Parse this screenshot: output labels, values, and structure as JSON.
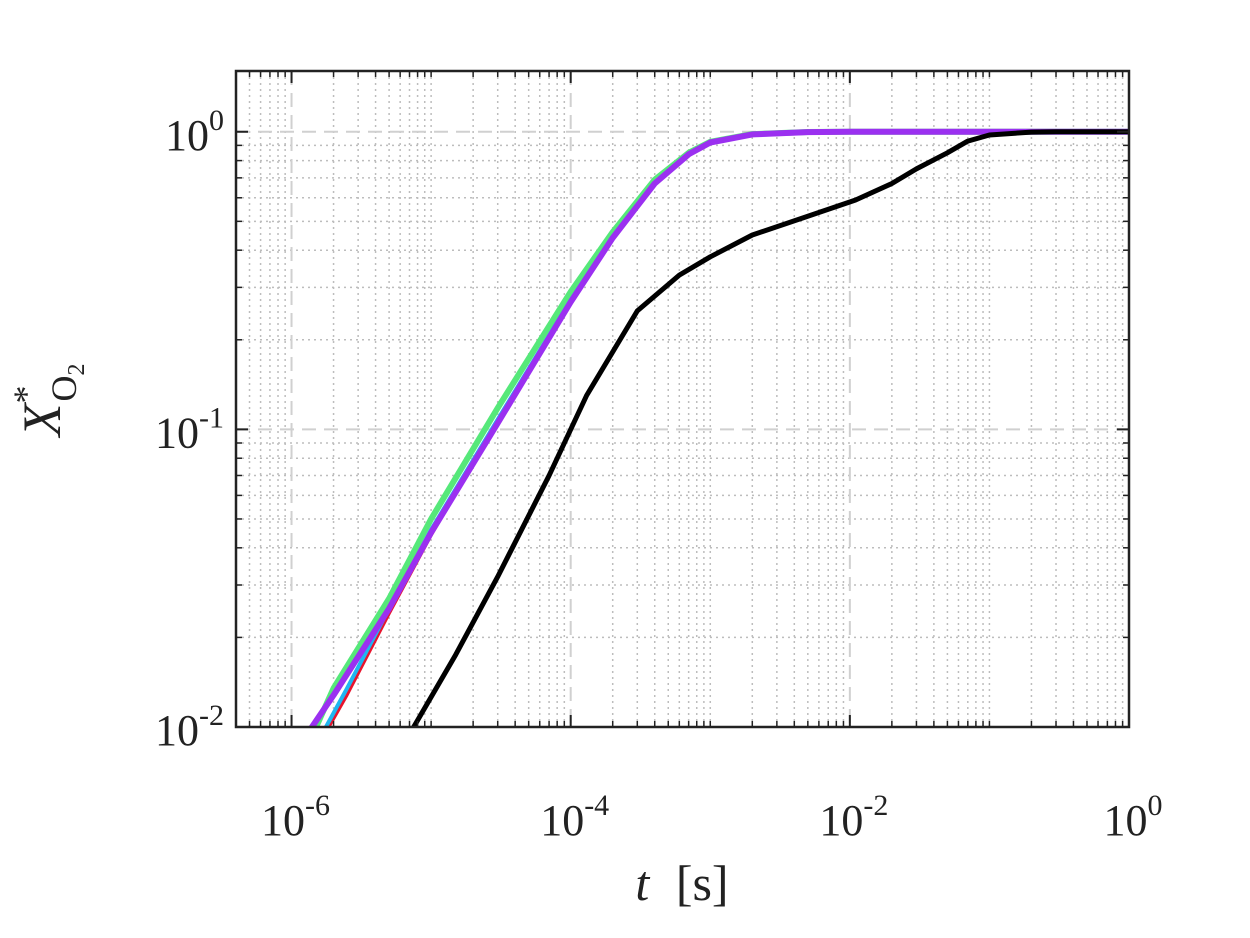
{
  "chart_data": {
    "type": "line",
    "title": "",
    "xlabel": {
      "var": "t",
      "unit": "[s]"
    },
    "ylabel": {
      "base": "X",
      "sup": "*",
      "sub": "O",
      "subsub": "2"
    },
    "xscale": "log",
    "yscale": "log",
    "xlim": [
      4e-07,
      1
    ],
    "ylim": [
      0.01,
      1.6
    ],
    "grid": true,
    "legend": "none",
    "x_ticks": [
      {
        "base": "10",
        "exp": "-6",
        "value": 1e-06
      },
      {
        "base": "10",
        "exp": "-4",
        "value": 0.0001
      },
      {
        "base": "10",
        "exp": "-2",
        "value": 0.01
      },
      {
        "base": "10",
        "exp": "0",
        "value": 1
      }
    ],
    "y_ticks": [
      {
        "base": "10",
        "exp": "-2",
        "value": 0.01
      },
      {
        "base": "10",
        "exp": "-1",
        "value": 0.1
      },
      {
        "base": "10",
        "exp": "0",
        "value": 1
      }
    ],
    "series": [
      {
        "color": "#e8142d",
        "width": 3,
        "points": [
          [
            1.7e-06,
            0.0093
          ],
          [
            2.5e-06,
            0.0128
          ],
          [
            5e-06,
            0.024
          ],
          [
            1e-05,
            0.044
          ],
          [
            3e-05,
            0.106
          ],
          [
            0.0001,
            0.27
          ],
          [
            0.0002,
            0.44
          ],
          [
            0.0004,
            0.67
          ],
          [
            0.0007,
            0.84
          ],
          [
            0.001,
            0.92
          ],
          [
            0.002,
            0.98
          ],
          [
            0.005,
            0.997
          ],
          [
            0.01,
            1.0
          ],
          [
            1,
            1.0
          ]
        ]
      },
      {
        "color": "#56e87a",
        "width": 6,
        "points": [
          [
            1.5e-06,
            0.01
          ],
          [
            2e-06,
            0.0135
          ],
          [
            5e-06,
            0.027
          ],
          [
            1e-05,
            0.05
          ],
          [
            3e-05,
            0.118
          ],
          [
            0.0001,
            0.29
          ],
          [
            0.0002,
            0.46
          ],
          [
            0.0004,
            0.69
          ],
          [
            0.0007,
            0.85
          ],
          [
            0.001,
            0.925
          ],
          [
            0.002,
            0.982
          ],
          [
            0.005,
            0.998
          ],
          [
            0.01,
            1.0
          ],
          [
            1,
            1.0
          ]
        ]
      },
      {
        "color": "#1fb6f0",
        "width": 4,
        "points": [
          [
            1.6e-06,
            0.0092
          ],
          [
            2.5e-06,
            0.0135
          ],
          [
            5e-06,
            0.025
          ],
          [
            1e-05,
            0.046
          ],
          [
            3e-05,
            0.108
          ],
          [
            0.0001,
            0.272
          ],
          [
            0.0002,
            0.445
          ],
          [
            0.0004,
            0.675
          ],
          [
            0.0007,
            0.84
          ],
          [
            0.001,
            0.92
          ],
          [
            0.002,
            0.98
          ],
          [
            0.005,
            0.997
          ],
          [
            0.01,
            1.0
          ],
          [
            1,
            1.0
          ]
        ]
      },
      {
        "color": "#9b30f0",
        "width": 6,
        "points": [
          [
            1.4e-06,
            0.01
          ],
          [
            2e-06,
            0.0128
          ],
          [
            5e-06,
            0.025
          ],
          [
            1e-05,
            0.045
          ],
          [
            3e-05,
            0.105
          ],
          [
            0.0001,
            0.268
          ],
          [
            0.0002,
            0.44
          ],
          [
            0.0004,
            0.67
          ],
          [
            0.0007,
            0.84
          ],
          [
            0.001,
            0.92
          ],
          [
            0.002,
            0.98
          ],
          [
            0.005,
            0.997
          ],
          [
            0.01,
            1.0
          ],
          [
            1,
            1.0
          ]
        ]
      },
      {
        "color": "#000000",
        "width": 5,
        "points": [
          [
            7.5e-06,
            0.01
          ],
          [
            1.5e-05,
            0.0175
          ],
          [
            3e-05,
            0.032
          ],
          [
            7e-05,
            0.07
          ],
          [
            0.00013,
            0.13
          ],
          [
            0.0003,
            0.25
          ],
          [
            0.0006,
            0.33
          ],
          [
            0.001,
            0.38
          ],
          [
            0.002,
            0.45
          ],
          [
            0.005,
            0.52
          ],
          [
            0.011,
            0.59
          ],
          [
            0.02,
            0.67
          ],
          [
            0.03,
            0.75
          ],
          [
            0.05,
            0.85
          ],
          [
            0.07,
            0.93
          ],
          [
            0.1,
            0.975
          ],
          [
            0.2,
            0.997
          ],
          [
            0.3,
            1.0
          ],
          [
            1,
            1.0
          ]
        ]
      }
    ]
  }
}
